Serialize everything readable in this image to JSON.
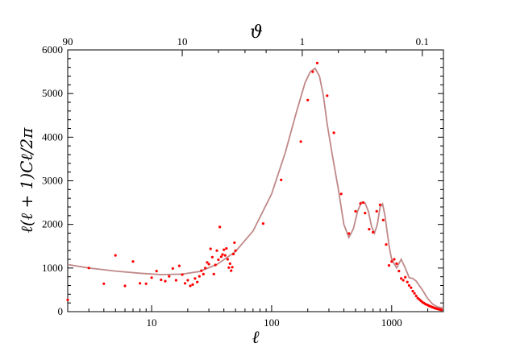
{
  "chart_data": {
    "type": "scatter",
    "title": "",
    "xlabel": "ℓ",
    "ylabel": "ℓ(ℓ + 1)Cℓ/2π",
    "top_axis_label": "ϑ",
    "xscale": "log",
    "xlim": [
      2,
      2700
    ],
    "ylim": [
      0,
      6000
    ],
    "x_ticks": [
      10,
      100,
      1000
    ],
    "x_tick_labels": [
      "10",
      "100",
      "1000"
    ],
    "y_ticks": [
      0,
      1000,
      2000,
      3000,
      4000,
      5000,
      6000
    ],
    "y_tick_labels": [
      "0",
      "1000",
      "2000",
      "3000",
      "4000",
      "5000",
      "6000"
    ],
    "top_ticks": [
      {
        "label": "90",
        "ell": 2
      },
      {
        "label": "10",
        "ell": 18
      },
      {
        "label": "1",
        "ell": 180
      },
      {
        "label": "0.1",
        "ell": 1800
      }
    ],
    "grid": false,
    "colors": {
      "points": "#ff0000",
      "curve": "#c08888",
      "axes": "#000000"
    },
    "series": [
      {
        "kind": "points",
        "x": [
          2,
          3,
          4,
          5,
          6,
          7,
          8,
          9,
          10,
          11,
          12,
          13,
          14,
          15,
          16,
          17,
          18,
          19,
          20,
          21,
          22,
          23,
          24,
          25,
          26,
          27,
          28,
          29,
          30,
          31,
          32,
          33,
          34,
          35,
          36,
          37,
          38,
          39,
          40,
          41,
          42,
          43,
          44,
          45,
          46,
          47,
          48,
          49,
          50,
          85,
          120,
          175,
          200,
          220,
          240,
          290,
          330,
          380,
          440,
          500,
          550,
          580,
          600,
          650,
          700,
          750,
          800,
          850,
          900,
          950,
          1000,
          1050,
          1100,
          1150,
          1200,
          1250,
          1300,
          1350,
          1400,
          1450,
          1500,
          1550,
          1600,
          1650,
          1700,
          1750,
          1800,
          1850,
          1900,
          1950,
          2000,
          2050,
          2100,
          2150,
          2200,
          2250,
          2300,
          2350,
          2400,
          2450,
          2500,
          2550,
          2600
        ],
        "y": [
          270,
          1000,
          640,
          1290,
          590,
          1150,
          650,
          640,
          780,
          930,
          730,
          700,
          810,
          990,
          720,
          1050,
          850,
          650,
          720,
          590,
          620,
          760,
          680,
          810,
          940,
          860,
          1000,
          1130,
          1090,
          1440,
          1250,
          860,
          1070,
          1400,
          1190,
          1940,
          1260,
          1310,
          1420,
          1290,
          1450,
          1200,
          1010,
          1100,
          940,
          1020,
          1320,
          1580,
          1400,
          2020,
          3020,
          3900,
          4850,
          5500,
          5700,
          4950,
          4100,
          2700,
          1790,
          2300,
          2480,
          2500,
          2260,
          1890,
          1820,
          2300,
          2450,
          2100,
          1540,
          1060,
          1150,
          1200,
          1100,
          930,
          760,
          720,
          790,
          680,
          600,
          550,
          470,
          420,
          360,
          310,
          280,
          250,
          220,
          200,
          180,
          160,
          150,
          135,
          120,
          110,
          100,
          90,
          80,
          72,
          65,
          58,
          52,
          46,
          40
        ]
      },
      {
        "kind": "curve",
        "x": [
          2,
          3,
          5,
          8,
          12,
          18,
          25,
          35,
          50,
          70,
          100,
          130,
          160,
          190,
          210,
          230,
          250,
          270,
          290,
          320,
          360,
          400,
          440,
          480,
          520,
          560,
          600,
          640,
          680,
          720,
          760,
          800,
          840,
          880,
          920,
          960,
          1000,
          1100,
          1200,
          1300,
          1400,
          1500,
          1600,
          1800,
          2000,
          2200,
          2400,
          2700
        ],
        "y": [
          1080,
          1000,
          930,
          880,
          850,
          860,
          920,
          1080,
          1380,
          1850,
          2700,
          3650,
          4550,
          5250,
          5500,
          5580,
          5400,
          4950,
          4300,
          3600,
          2800,
          2000,
          1700,
          1900,
          2300,
          2510,
          2490,
          2300,
          1950,
          1800,
          2000,
          2400,
          2470,
          2200,
          1800,
          1450,
          1200,
          1000,
          1200,
          1000,
          780,
          760,
          700,
          500,
          300,
          170,
          110,
          80
        ]
      }
    ]
  }
}
